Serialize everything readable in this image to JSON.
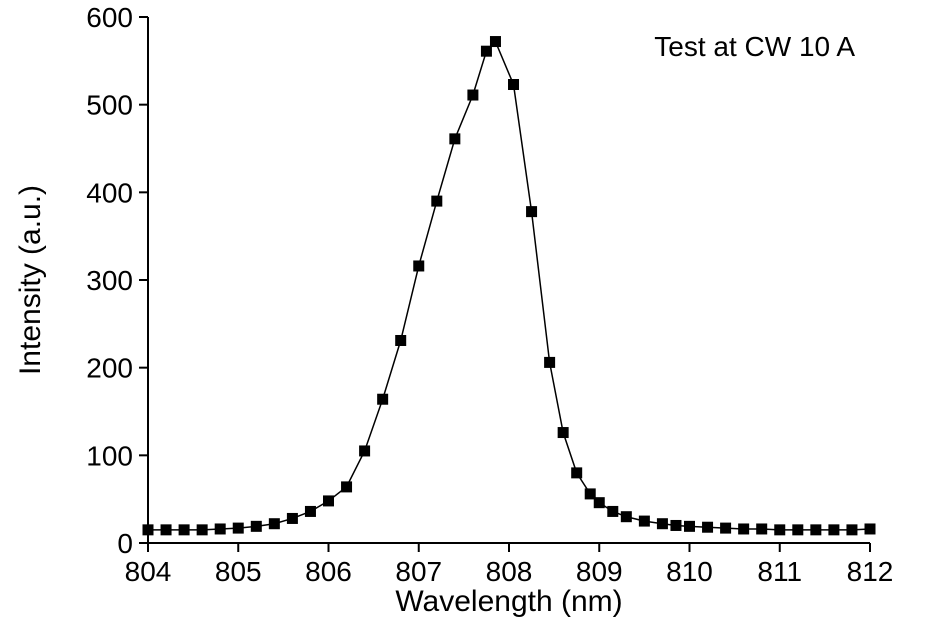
{
  "chart_data": {
    "type": "line",
    "title": "",
    "annotation": "Test at CW 10 A",
    "xlabel": "Wavelength (nm)",
    "ylabel": "Intensity (a.u.)",
    "xlim": [
      804,
      812
    ],
    "ylim": [
      0,
      600
    ],
    "x_ticks": [
      804,
      805,
      806,
      807,
      808,
      809,
      810,
      811,
      812
    ],
    "y_ticks": [
      0,
      100,
      200,
      300,
      400,
      500,
      600
    ],
    "legend": "none",
    "grid": "off",
    "marker": "filled-square",
    "marker_color": "#000000",
    "line_color": "#000000",
    "points": [
      [
        804.0,
        15
      ],
      [
        804.2,
        15
      ],
      [
        804.4,
        15
      ],
      [
        804.6,
        15
      ],
      [
        804.8,
        16
      ],
      [
        805.0,
        17
      ],
      [
        805.2,
        19
      ],
      [
        805.4,
        22
      ],
      [
        805.6,
        28
      ],
      [
        805.8,
        36
      ],
      [
        806.0,
        48
      ],
      [
        806.2,
        64
      ],
      [
        806.4,
        105
      ],
      [
        806.6,
        164
      ],
      [
        806.8,
        231
      ],
      [
        807.0,
        316
      ],
      [
        807.2,
        390
      ],
      [
        807.4,
        461
      ],
      [
        807.6,
        511
      ],
      [
        807.75,
        561
      ],
      [
        807.85,
        572
      ],
      [
        808.05,
        523
      ],
      [
        808.25,
        378
      ],
      [
        808.45,
        206
      ],
      [
        808.6,
        126
      ],
      [
        808.75,
        80
      ],
      [
        808.9,
        56
      ],
      [
        809.0,
        46
      ],
      [
        809.15,
        36
      ],
      [
        809.3,
        30
      ],
      [
        809.5,
        25
      ],
      [
        809.7,
        22
      ],
      [
        809.85,
        20
      ],
      [
        810.0,
        19
      ],
      [
        810.2,
        18
      ],
      [
        810.4,
        17
      ],
      [
        810.6,
        16
      ],
      [
        810.8,
        16
      ],
      [
        811.0,
        15
      ],
      [
        811.2,
        15
      ],
      [
        811.4,
        15
      ],
      [
        811.6,
        15
      ],
      [
        811.8,
        15
      ],
      [
        812.0,
        16
      ]
    ]
  },
  "layout_hints": {
    "axis_color": "#000000",
    "background": "#ffffff"
  }
}
